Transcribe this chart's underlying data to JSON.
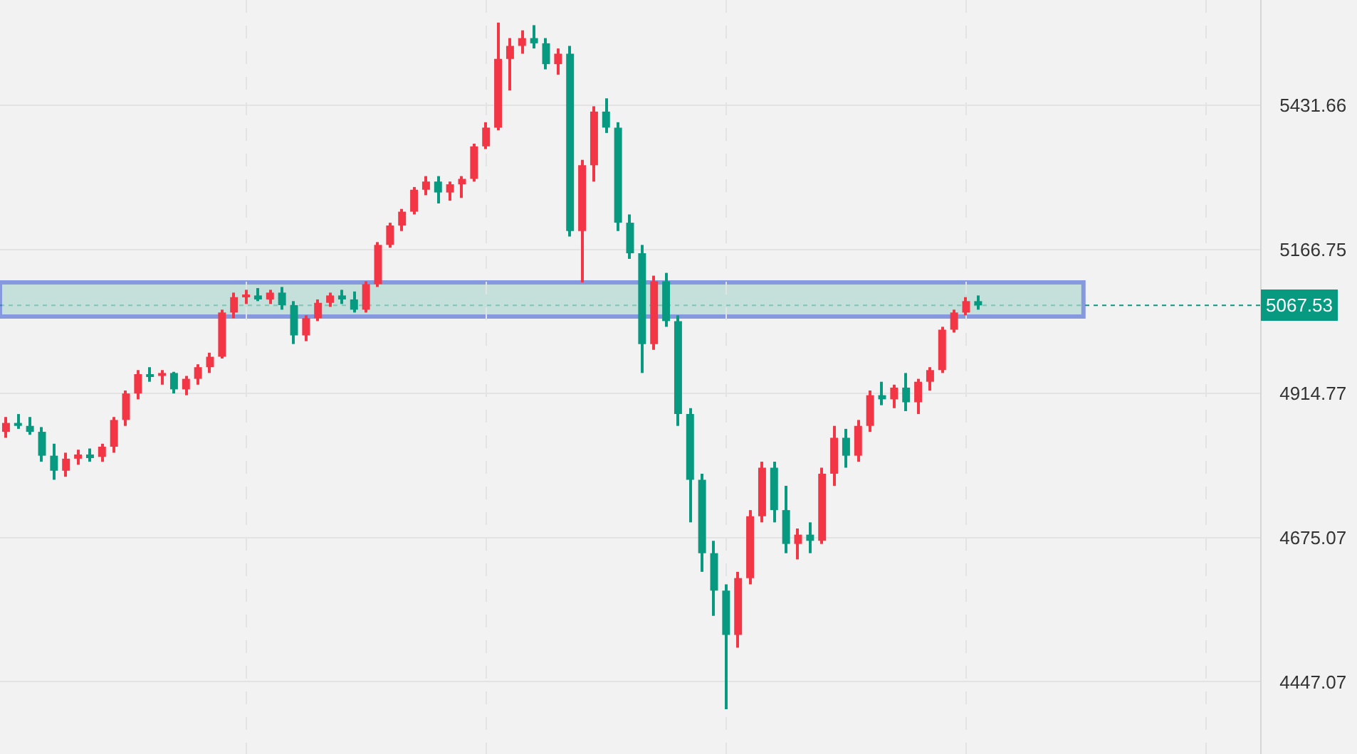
{
  "chart_data": {
    "type": "candlestick",
    "categories": [
      null,
      null,
      null,
      null,
      null,
      null,
      null,
      null,
      null,
      null,
      null,
      null,
      null,
      null,
      null,
      null,
      null,
      null,
      null,
      null,
      null,
      null,
      null,
      null,
      null,
      null,
      null,
      null,
      null,
      null,
      null,
      null,
      null,
      null,
      null,
      null,
      null,
      null,
      null,
      null,
      null,
      null,
      null,
      null,
      null,
      null,
      null,
      null,
      null,
      null,
      null,
      null,
      null,
      null,
      null,
      null,
      null,
      null,
      null,
      null,
      null,
      null,
      null,
      null,
      null,
      null,
      null,
      null,
      null,
      null,
      null,
      null,
      null,
      null,
      null,
      null,
      null,
      null,
      null,
      null,
      null,
      null,
      null,
      null,
      null,
      null,
      null,
      null,
      null,
      null,
      null,
      null,
      null,
      null,
      null,
      null,
      null,
      null,
      null,
      null,
      null,
      null,
      null,
      null,
      null
    ],
    "ohlc": [
      [
        4850,
        4875,
        4840,
        4865
      ],
      [
        4865,
        4880,
        4855,
        4860
      ],
      [
        4860,
        4875,
        4845,
        4850
      ],
      [
        4850,
        4858,
        4800,
        4810
      ],
      [
        4810,
        4830,
        4770,
        4785
      ],
      [
        4785,
        4815,
        4775,
        4805
      ],
      [
        4805,
        4820,
        4795,
        4812
      ],
      [
        4812,
        4822,
        4800,
        4808
      ],
      [
        4808,
        4830,
        4800,
        4825
      ],
      [
        4825,
        4875,
        4815,
        4870
      ],
      [
        4870,
        4920,
        4860,
        4915
      ],
      [
        4915,
        4955,
        4905,
        4948
      ],
      [
        4948,
        4960,
        4935,
        4945
      ],
      [
        4945,
        4955,
        4930,
        4950
      ],
      [
        4950,
        4952,
        4915,
        4922
      ],
      [
        4922,
        4945,
        4912,
        4940
      ],
      [
        4940,
        4965,
        4930,
        4960
      ],
      [
        4960,
        4985,
        4950,
        4978
      ],
      [
        4978,
        5060,
        4975,
        5055
      ],
      [
        5055,
        5090,
        5045,
        5082
      ],
      [
        5082,
        5095,
        5070,
        5085
      ],
      [
        5085,
        5098,
        5075,
        5078
      ],
      [
        5078,
        5095,
        5070,
        5090
      ],
      [
        5090,
        5100,
        5060,
        5068
      ],
      [
        5068,
        5075,
        5000,
        5015
      ],
      [
        5015,
        5050,
        5005,
        5045
      ],
      [
        5045,
        5078,
        5040,
        5072
      ],
      [
        5072,
        5090,
        5065,
        5085
      ],
      [
        5085,
        5095,
        5070,
        5078
      ],
      [
        5078,
        5092,
        5055,
        5060
      ],
      [
        5060,
        5110,
        5055,
        5105
      ],
      [
        5105,
        5180,
        5100,
        5175
      ],
      [
        5175,
        5215,
        5170,
        5210
      ],
      [
        5210,
        5240,
        5200,
        5235
      ],
      [
        5235,
        5280,
        5230,
        5275
      ],
      [
        5275,
        5300,
        5265,
        5290
      ],
      [
        5290,
        5300,
        5250,
        5270
      ],
      [
        5270,
        5290,
        5255,
        5285
      ],
      [
        5285,
        5300,
        5260,
        5295
      ],
      [
        5295,
        5360,
        5290,
        5355
      ],
      [
        5355,
        5400,
        5350,
        5390
      ],
      [
        5390,
        5590,
        5385,
        5520
      ],
      [
        5520,
        5560,
        5460,
        5545
      ],
      [
        5545,
        5575,
        5530,
        5560
      ],
      [
        5560,
        5585,
        5540,
        5550
      ],
      [
        5550,
        5560,
        5500,
        5510
      ],
      [
        5510,
        5540,
        5490,
        5530
      ],
      [
        5530,
        5545,
        5190,
        5200
      ],
      [
        5200,
        5330,
        5108,
        5320
      ],
      [
        5320,
        5430,
        5290,
        5420
      ],
      [
        5420,
        5445,
        5380,
        5390
      ],
      [
        5390,
        5400,
        5200,
        5215
      ],
      [
        5215,
        5230,
        5150,
        5160
      ],
      [
        5160,
        5175,
        4950,
        5000
      ],
      [
        5000,
        5120,
        4990,
        5110
      ],
      [
        5110,
        5125,
        5030,
        5040
      ],
      [
        5040,
        5050,
        4860,
        4880
      ],
      [
        4880,
        4890,
        4700,
        4770
      ],
      [
        4770,
        4780,
        4620,
        4650
      ],
      [
        4650,
        4670,
        4550,
        4590
      ],
      [
        4590,
        4600,
        4405,
        4520
      ],
      [
        4520,
        4620,
        4500,
        4610
      ],
      [
        4610,
        4720,
        4600,
        4710
      ],
      [
        4710,
        4800,
        4700,
        4790
      ],
      [
        4790,
        4800,
        4700,
        4720
      ],
      [
        4720,
        4760,
        4650,
        4665
      ],
      [
        4665,
        4690,
        4640,
        4680
      ],
      [
        4680,
        4700,
        4650,
        4670
      ],
      [
        4670,
        4790,
        4665,
        4780
      ],
      [
        4780,
        4860,
        4760,
        4840
      ],
      [
        4840,
        4855,
        4790,
        4810
      ],
      [
        4810,
        4870,
        4800,
        4860
      ],
      [
        4860,
        4920,
        4850,
        4912
      ],
      [
        4912,
        4935,
        4895,
        4905
      ],
      [
        4905,
        4930,
        4890,
        4925
      ],
      [
        4925,
        4950,
        4885,
        4900
      ],
      [
        4900,
        4940,
        4880,
        4935
      ],
      [
        4935,
        4960,
        4920,
        4955
      ],
      [
        4955,
        5030,
        4950,
        5025
      ],
      [
        5025,
        5060,
        5020,
        5055
      ],
      [
        5055,
        5082,
        5050,
        5075
      ],
      [
        5075,
        5085,
        5060,
        5067.53
      ],
      null,
      null,
      null,
      null,
      null,
      null,
      null,
      null,
      null,
      null,
      null,
      null,
      null,
      null,
      null,
      null,
      null,
      null,
      null,
      null,
      null,
      null,
      null
    ],
    "log": "y",
    "ylim": [
      4337,
      5634
    ],
    "yticks": [
      4447.07,
      4675.07,
      4914.77,
      5166.75,
      5431.66
    ],
    "tick_labels": "y",
    "grid": true,
    "ref_lines": [
      {
        "axis": "y",
        "value": 5067.53,
        "label": "5067.53",
        "color": "#089981",
        "line_style": "dotted"
      }
    ],
    "bands": [
      {
        "axis": "y",
        "from": 5048,
        "to": 5108,
        "color": "#b2d8d0"
      }
    ]
  }
}
